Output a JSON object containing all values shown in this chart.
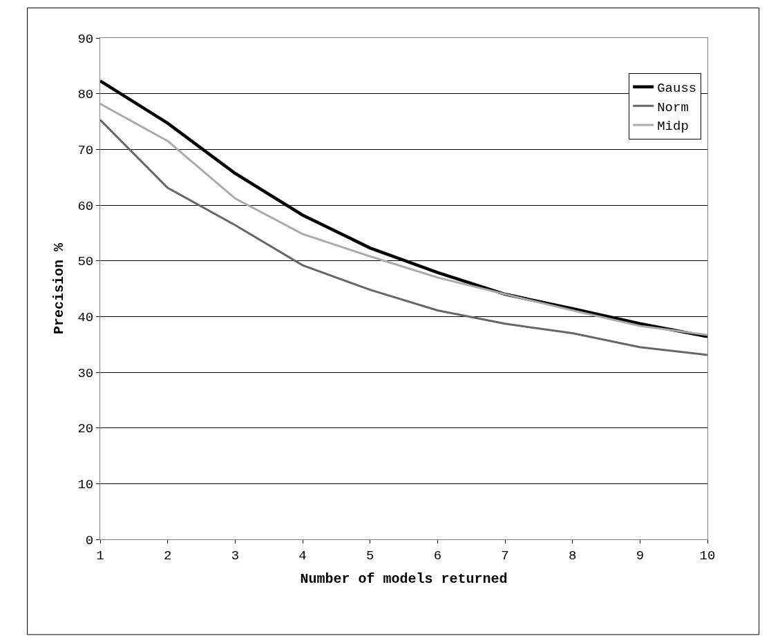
{
  "chart_data": {
    "type": "line",
    "xlabel": "Number of models returned",
    "ylabel": "Precision %",
    "x": [
      1,
      2,
      3,
      4,
      5,
      6,
      7,
      8,
      9,
      10
    ],
    "xlim": [
      1,
      10
    ],
    "xticks": [
      1,
      2,
      3,
      4,
      5,
      6,
      7,
      8,
      9,
      10
    ],
    "ylim": [
      0,
      90
    ],
    "yticks": [
      0,
      10,
      20,
      30,
      40,
      50,
      60,
      70,
      80,
      90
    ],
    "grid": "y",
    "legend": "top right",
    "marker": "none",
    "line_style": "solid",
    "series": [
      {
        "name": "Gauss",
        "color": "#000000",
        "values": [
          82.3,
          74.7,
          65.7,
          58.2,
          52.3,
          47.9,
          44.0,
          41.4,
          38.7,
          36.4
        ]
      },
      {
        "name": "Norm",
        "color": "#666666",
        "values": [
          75.3,
          63.1,
          56.4,
          49.2,
          44.8,
          41.1,
          38.7,
          37.0,
          34.5,
          33.1
        ]
      },
      {
        "name": "Midp",
        "color": "#aaaaaa",
        "values": [
          78.2,
          71.5,
          61.2,
          54.8,
          50.8,
          47.0,
          44.0,
          41.1,
          38.3,
          36.7
        ]
      }
    ]
  }
}
